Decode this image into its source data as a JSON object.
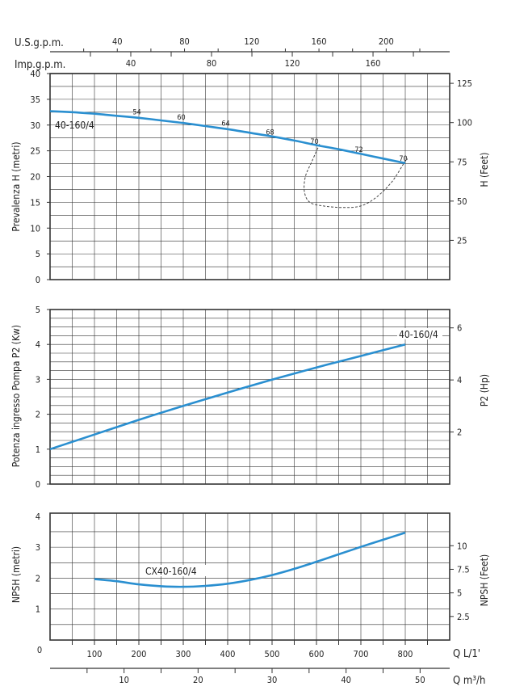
{
  "chart_data": [
    {
      "type": "line",
      "series": [
        {
          "name": "40-160/4",
          "x": [
            0,
            50,
            100,
            150,
            200,
            250,
            300,
            350,
            400,
            450,
            500,
            550,
            600,
            650,
            700,
            750,
            800
          ],
          "y": [
            32.7,
            32.5,
            32.2,
            31.8,
            31.4,
            30.9,
            30.4,
            29.8,
            29.2,
            28.5,
            27.8,
            27.0,
            26.1,
            25.3,
            24.4,
            23.5,
            22.6
          ]
        }
      ],
      "efficiency_labels": [
        {
          "text": "54",
          "x": 210,
          "y": 31.6
        },
        {
          "text": "60",
          "x": 310,
          "y": 30.6
        },
        {
          "text": "64",
          "x": 410,
          "y": 29.4
        },
        {
          "text": "68",
          "x": 510,
          "y": 27.7
        },
        {
          "text": "70",
          "x": 610,
          "y": 25.9
        },
        {
          "text": "72",
          "x": 710,
          "y": 24.3
        },
        {
          "text": "70",
          "x": 810,
          "y": 22.6
        }
      ],
      "npsh_envelope": {
        "x": [
          607,
          590,
          575,
          573,
          585,
          615,
          660,
          700,
          735,
          770,
          800,
          805
        ],
        "y": [
          26.3,
          23,
          20,
          17,
          15,
          14.3,
          14,
          14.3,
          16,
          19,
          23,
          23.3
        ]
      },
      "ylabel": "Prevalenza H (metri)",
      "y2label": "H (Feet)",
      "xlim": [
        0,
        900
      ],
      "ylim": [
        0,
        40
      ],
      "y_ticks": [
        "0",
        "5",
        "10",
        "15",
        "20",
        "25",
        "30",
        "35",
        "40"
      ],
      "y2_ticks": [
        "25",
        "50",
        "75",
        "100",
        "125"
      ],
      "y2_scale_per_metre": 3.2808,
      "grid": true
    },
    {
      "type": "line",
      "series": [
        {
          "name": "40-160/4",
          "x": [
            0,
            100,
            200,
            300,
            400,
            500,
            600,
            700,
            800
          ],
          "y": [
            1.0,
            1.42,
            1.84,
            2.24,
            2.62,
            2.99,
            3.34,
            3.67,
            4.0
          ]
        }
      ],
      "ylabel": "Potenza ingresso Pompa P2 (Kw)",
      "y2label": "P2 (Hp)",
      "xlim": [
        0,
        900
      ],
      "ylim": [
        0,
        5
      ],
      "y_ticks": [
        "0",
        "1",
        "2",
        "3",
        "4",
        "5"
      ],
      "y2_ticks": [
        "2",
        "4",
        "6"
      ],
      "y2_scale_per_unit": 1.341,
      "grid": true
    },
    {
      "type": "line",
      "series": [
        {
          "name": "CX40-160/4",
          "x": [
            100,
            150,
            200,
            250,
            300,
            350,
            400,
            450,
            500,
            550,
            600,
            650,
            700,
            750,
            800
          ],
          "y": [
            1.97,
            1.9,
            1.8,
            1.74,
            1.72,
            1.75,
            1.82,
            1.94,
            2.1,
            2.3,
            2.53,
            2.77,
            3.01,
            3.24,
            3.47
          ]
        }
      ],
      "ylabel": "NPSH (metri)",
      "y2label": "NPSH (Feet)",
      "xlim": [
        0,
        900
      ],
      "ylim": [
        0,
        4
      ],
      "y_ticks": [
        "1",
        "2",
        "3",
        "4"
      ],
      "y2_ticks": [
        "2.5",
        "5",
        "7.5",
        "10"
      ],
      "y2_scale_per_metre": 3.2808,
      "grid": true
    }
  ],
  "axes": {
    "usgpm": {
      "label": "U.S.g.p.m.",
      "ticks": [
        "40",
        "80",
        "120",
        "160",
        "200"
      ],
      "per_unit": 3.785
    },
    "impgpm": {
      "label": "Imp.g.p.m.",
      "ticks": [
        "40",
        "80",
        "120",
        "160"
      ],
      "per_unit": 4.546
    },
    "lmin": {
      "label": "Q  L/1'",
      "origin": "0",
      "ticks": [
        "100",
        "200",
        "300",
        "400",
        "500",
        "600",
        "700",
        "800"
      ]
    },
    "m3h": {
      "label": "Q  m³/h",
      "ticks": [
        "10",
        "20",
        "30",
        "40",
        "50"
      ],
      "per_unit": 16.667
    }
  },
  "colors": {
    "curve": "#2a8fd0",
    "grid": "#333333",
    "text": "#222222",
    "dashed": "#444444"
  }
}
